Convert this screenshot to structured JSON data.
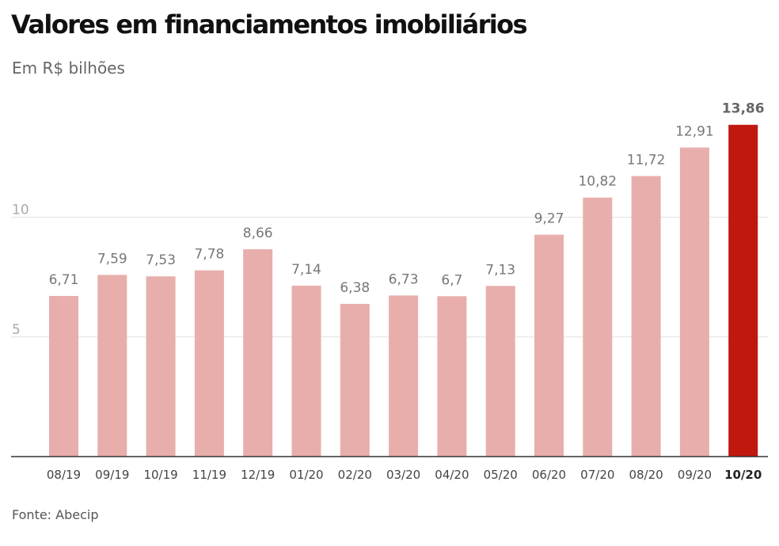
{
  "chart_data": {
    "type": "bar",
    "title": "Valores em financiamentos imobiliários",
    "subtitle": "Em R$ bilhões",
    "source": "Fonte: Abecip",
    "categories": [
      "08/19",
      "09/19",
      "10/19",
      "11/19",
      "12/19",
      "01/20",
      "02/20",
      "03/20",
      "04/20",
      "05/20",
      "06/20",
      "07/20",
      "08/20",
      "09/20",
      "10/20"
    ],
    "values": [
      6.71,
      7.59,
      7.53,
      7.78,
      8.66,
      7.14,
      6.38,
      6.73,
      6.7,
      7.13,
      9.27,
      10.82,
      11.72,
      12.91,
      13.86
    ],
    "value_labels": [
      "6,71",
      "7,59",
      "7,53",
      "7,78",
      "8,66",
      "7,14",
      "6,38",
      "6,73",
      "6,7",
      "7,13",
      "9,27",
      "10,82",
      "11,72",
      "12,91",
      "13,86"
    ],
    "yticks": [
      5,
      10
    ],
    "ytick_labels": [
      "5",
      "10"
    ],
    "ylim": [
      0,
      15
    ],
    "highlight_index": 14,
    "colors": {
      "bar": "#e8aeab",
      "highlight": "#c0170f"
    },
    "grid": true,
    "xlabel": "",
    "ylabel": ""
  }
}
